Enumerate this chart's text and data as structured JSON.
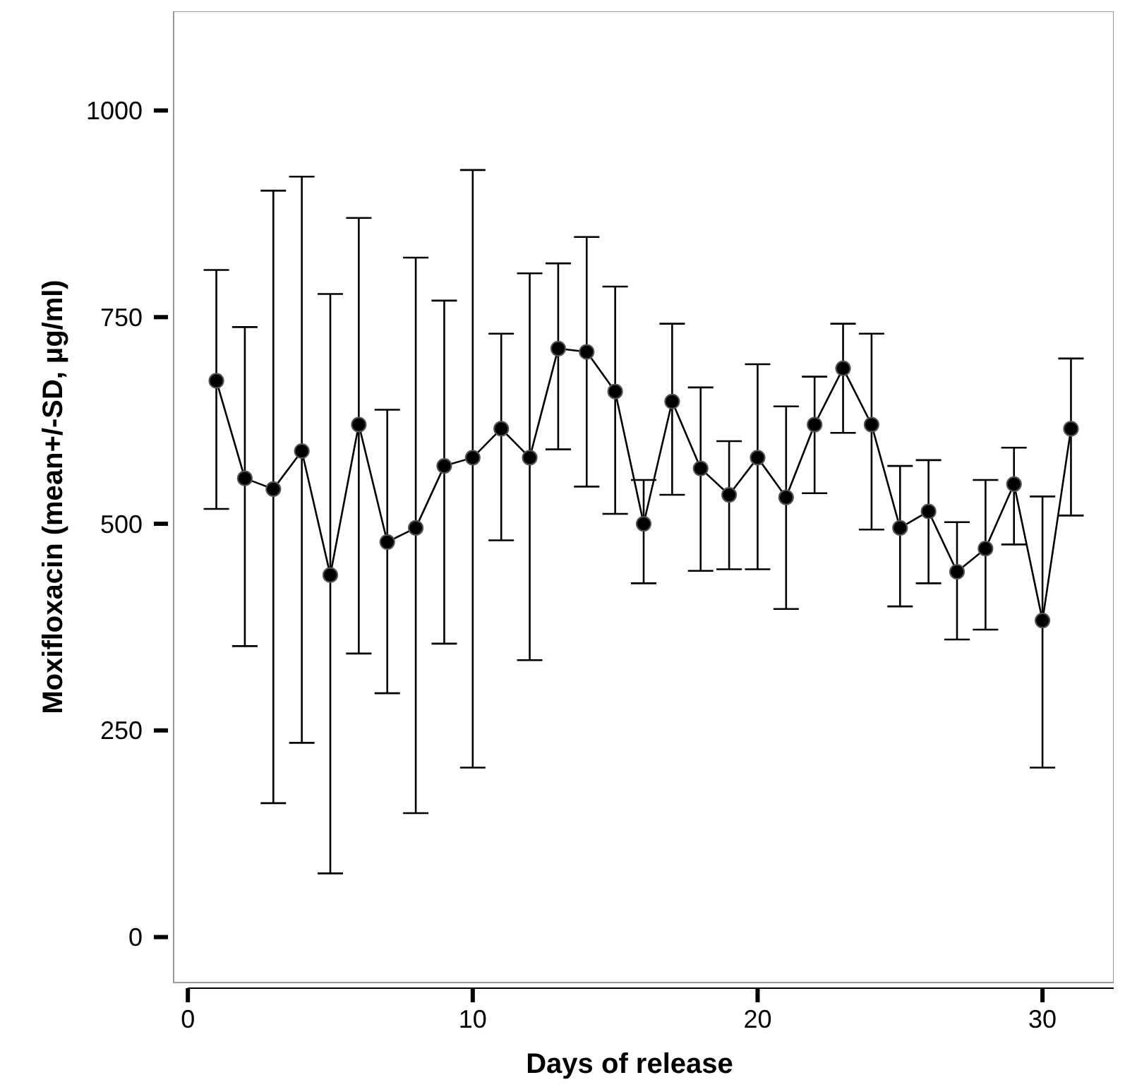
{
  "chart_data": {
    "type": "line",
    "xlabel": "Days of release",
    "ylabel": "Moxifloxacin (mean+/-SD, µg/ml)",
    "x": [
      1,
      2,
      3,
      4,
      5,
      6,
      7,
      8,
      9,
      10,
      11,
      12,
      13,
      14,
      15,
      16,
      17,
      18,
      19,
      20,
      21,
      22,
      23,
      24,
      25,
      26,
      27,
      28,
      29,
      30,
      31
    ],
    "series": [
      {
        "color": "#000000",
        "marker": "circle",
        "line_style": "solid",
        "values": [
          673,
          555,
          542,
          588,
          438,
          620,
          478,
          495,
          570,
          580,
          615,
          580,
          712,
          708,
          660,
          500,
          648,
          567,
          535,
          580,
          532,
          620,
          688,
          620,
          495,
          515,
          442,
          470,
          548,
          383,
          615
        ],
        "errors": [
          [
            518,
            807
          ],
          [
            352,
            738
          ],
          [
            162,
            903
          ],
          [
            235,
            920
          ],
          [
            77,
            778
          ],
          [
            343,
            870
          ],
          [
            295,
            638
          ],
          [
            150,
            822
          ],
          [
            355,
            770
          ],
          [
            205,
            928
          ],
          [
            480,
            730
          ],
          [
            335,
            803
          ],
          [
            590,
            815
          ],
          [
            545,
            847
          ],
          [
            512,
            787
          ],
          [
            428,
            553
          ],
          [
            535,
            742
          ],
          [
            443,
            665
          ],
          [
            445,
            600
          ],
          [
            445,
            693
          ],
          [
            397,
            642
          ],
          [
            537,
            678
          ],
          [
            610,
            742
          ],
          [
            493,
            730
          ],
          [
            400,
            570
          ],
          [
            428,
            577
          ],
          [
            360,
            502
          ],
          [
            372,
            553
          ],
          [
            475,
            592
          ],
          [
            205,
            533
          ],
          [
            510,
            700
          ]
        ]
      }
    ],
    "xlim": [
      -0.5,
      32.5
    ],
    "xticks": [
      0,
      10,
      20,
      30
    ],
    "ylim": [
      -55,
      1120
    ],
    "yticks": [
      0,
      250,
      500,
      750,
      1000
    ]
  }
}
